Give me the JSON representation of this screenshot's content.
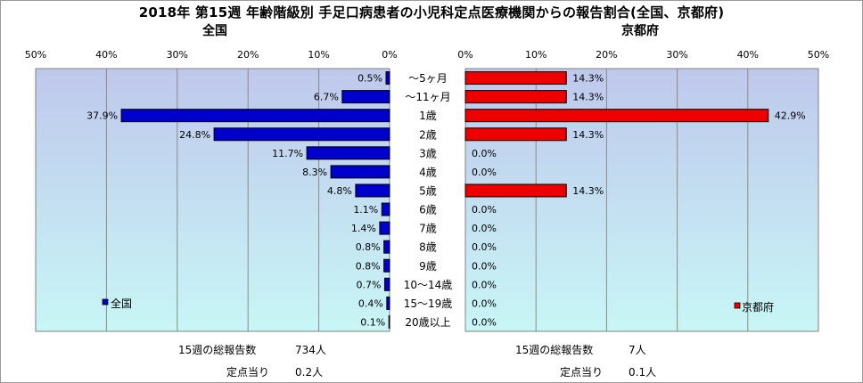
{
  "title": "2018年 第15週 年齢階級別 手足口病患者の小児科定点医療機関からの報告割合(全国、京都府)",
  "colors": {
    "national": "#0000cc",
    "kyoto": "#ee0000",
    "plot_top": "#bfc8ec",
    "plot_bottom": "#c8f6f6"
  },
  "chart_data": [
    {
      "type": "bar",
      "panel_title": "全国",
      "legend": "全国",
      "legend_placement": "bottom-left",
      "orientation": "horizontal-reversed",
      "categories": [
        "～5ヶ月",
        "～11ヶ月",
        "1歳",
        "2歳",
        "3歳",
        "4歳",
        "5歳",
        "6歳",
        "7歳",
        "8歳",
        "9歳",
        "10～14歳",
        "15～19歳",
        "20歳以上"
      ],
      "values": [
        0.5,
        6.7,
        37.9,
        24.8,
        11.7,
        8.3,
        4.8,
        1.1,
        1.4,
        0.8,
        0.8,
        0.7,
        0.4,
        0.1
      ],
      "value_labels": [
        "0.5%",
        "6.7%",
        "37.9%",
        "24.8%",
        "11.7%",
        "8.3%",
        "4.8%",
        "1.1%",
        "1.4%",
        "0.8%",
        "0.8%",
        "0.7%",
        "0.4%",
        "0.1%"
      ],
      "xlim": [
        0,
        50
      ],
      "tick_labels": [
        "50%",
        "40%",
        "30%",
        "20%",
        "10%",
        "0%"
      ],
      "grid": true
    },
    {
      "type": "bar",
      "panel_title": "京都府",
      "legend": "京都府",
      "legend_placement": "bottom-right",
      "orientation": "horizontal",
      "categories": [
        "～5ヶ月",
        "～11ヶ月",
        "1歳",
        "2歳",
        "3歳",
        "4歳",
        "5歳",
        "6歳",
        "7歳",
        "8歳",
        "9歳",
        "10～14歳",
        "15～19歳",
        "20歳以上"
      ],
      "values": [
        14.3,
        14.3,
        42.9,
        14.3,
        0.0,
        0.0,
        14.3,
        0.0,
        0.0,
        0.0,
        0.0,
        0.0,
        0.0,
        0.0
      ],
      "value_labels": [
        "14.3%",
        "14.3%",
        "42.9%",
        "14.3%",
        "0.0%",
        "0.0%",
        "14.3%",
        "0.0%",
        "0.0%",
        "0.0%",
        "0.0%",
        "0.0%",
        "0.0%",
        "0.0%"
      ],
      "xlim": [
        0,
        50
      ],
      "tick_labels": [
        "0%",
        "10%",
        "20%",
        "30%",
        "40%",
        "50%"
      ],
      "grid": true
    }
  ],
  "footer": {
    "national": {
      "total_label": "15週の総報告数",
      "total_value": "734人",
      "per_label": "定点当り",
      "per_value": "0.2人"
    },
    "kyoto": {
      "total_label": "15週の総報告数",
      "total_value": "7人",
      "per_label": "定点当り",
      "per_value": "0.1人"
    }
  }
}
